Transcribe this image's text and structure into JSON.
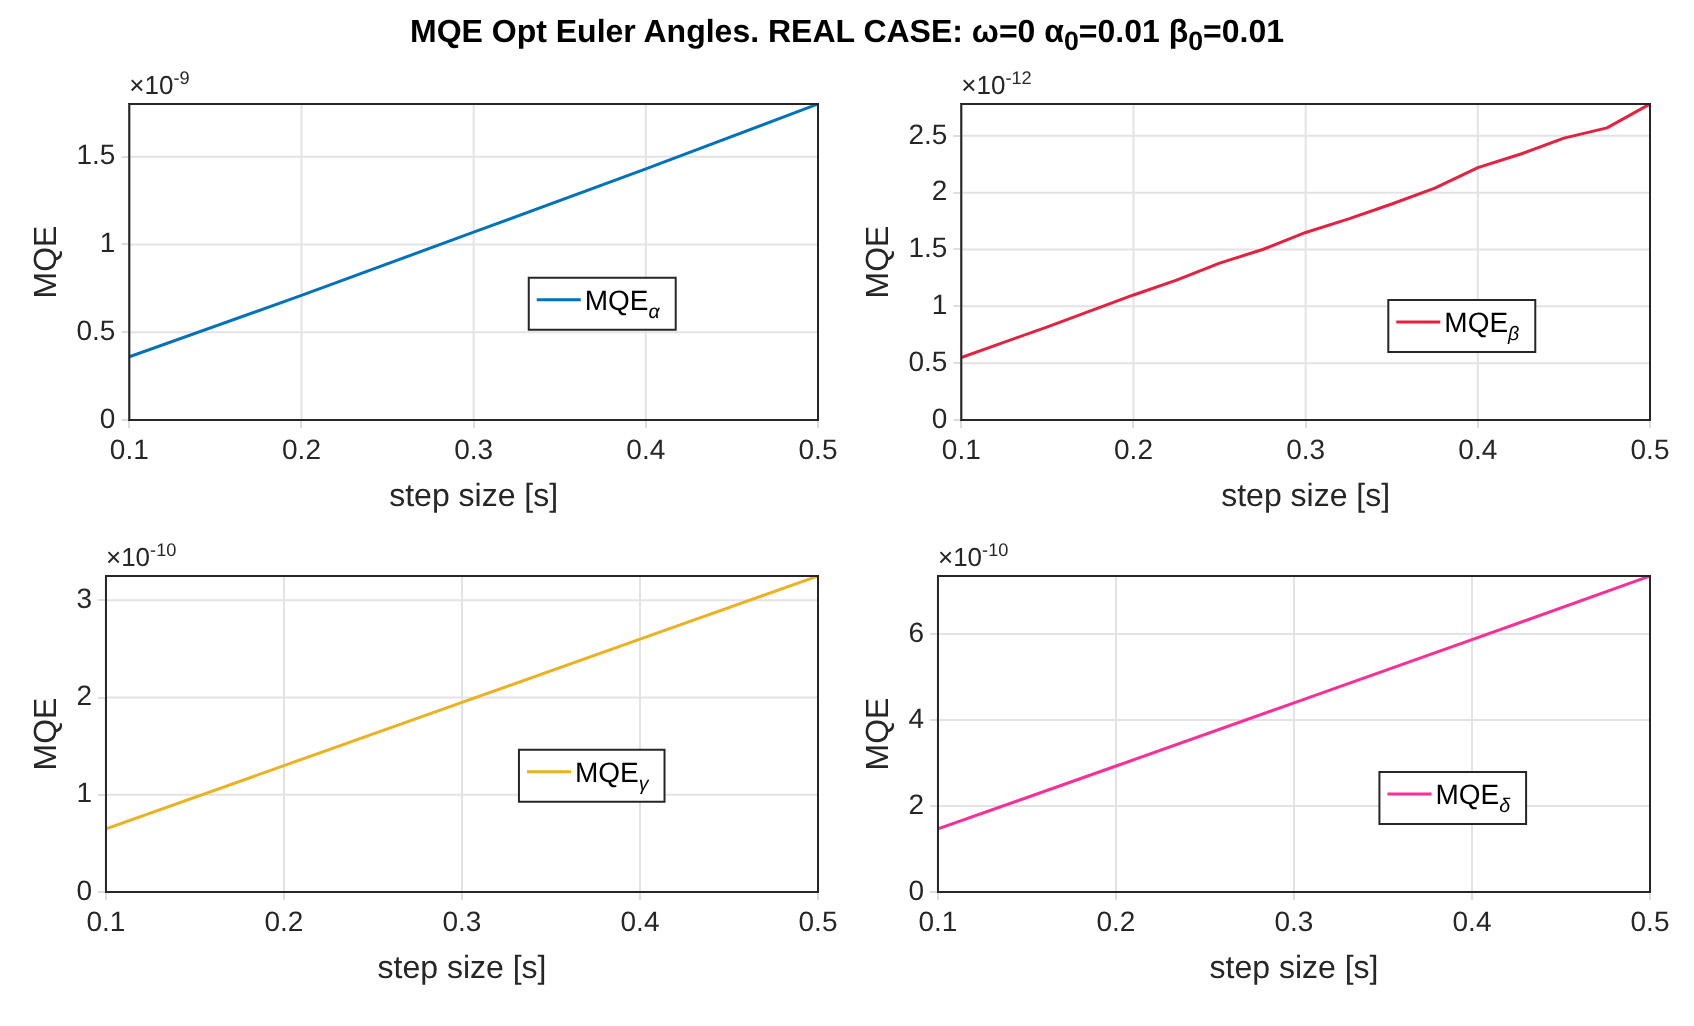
{
  "chart_data": [
    {
      "type": "line",
      "title": "MQE Opt Euler Angles. REAL CASE: ω=0 α$_{0}$=0.01 β$_{0}$=0.01",
      "xlabel": "step size [s]",
      "ylabel": "MQE",
      "annotations": [
        "×10$^{-9}$"
      ],
      "grid": true,
      "legend": "right",
      "xlim": [
        0.1,
        0.5
      ],
      "xticks": [
        0.1,
        0.2,
        0.3,
        0.4,
        0.5
      ],
      "ylim": [
        0,
        1.8
      ],
      "yticks": [
        0,
        0.5,
        1,
        1.5
      ],
      "series": [
        {
          "name": "MQE$_{α}$",
          "color": "#0072bd",
          "x": [
            0.1,
            0.2,
            0.3,
            0.4,
            0.5
          ],
          "values": [
            0.36,
            0.71,
            1.07,
            1.43,
            1.8
          ]
        }
      ]
    },
    {
      "type": "line",
      "xlabel": "step size [s]",
      "ylabel": "MQE",
      "annotations": [
        "×10$^{-12}$"
      ],
      "grid": true,
      "legend": "bottom right",
      "xlim": [
        0.1,
        0.5
      ],
      "xticks": [
        0.1,
        0.2,
        0.3,
        0.4,
        0.5
      ],
      "ylim": [
        0,
        2.78
      ],
      "yticks": [
        0,
        0.5,
        1,
        1.5,
        2,
        2.5
      ],
      "series": [
        {
          "name": "MQE$_{β}$",
          "color": "#e8203f",
          "x": [
            0.1,
            0.15,
            0.2,
            0.225,
            0.25,
            0.275,
            0.3,
            0.325,
            0.35,
            0.375,
            0.4,
            0.425,
            0.45,
            0.475,
            0.5
          ],
          "values": [
            0.55,
            0.82,
            1.1,
            1.23,
            1.38,
            1.5,
            1.65,
            1.77,
            1.9,
            2.04,
            2.22,
            2.34,
            2.48,
            2.57,
            2.78
          ]
        }
      ]
    },
    {
      "type": "line",
      "xlabel": "step size [s]",
      "ylabel": "MQE",
      "annotations": [
        "×10$^{-10}$"
      ],
      "grid": true,
      "legend": "right",
      "xlim": [
        0.1,
        0.5
      ],
      "xticks": [
        0.1,
        0.2,
        0.3,
        0.4,
        0.5
      ],
      "ylim": [
        0,
        3.25
      ],
      "yticks": [
        0,
        1,
        2,
        3
      ],
      "series": [
        {
          "name": "MQE$_{γ}$",
          "color": "#edb120",
          "x": [
            0.1,
            0.2,
            0.3,
            0.4,
            0.5
          ],
          "values": [
            0.65,
            1.3,
            1.95,
            2.6,
            3.25
          ]
        }
      ]
    },
    {
      "type": "line",
      "xlabel": "step size [s]",
      "ylabel": "MQE",
      "annotations": [
        "×10$^{-10}$"
      ],
      "grid": true,
      "legend": "bottom right",
      "xlim": [
        0.1,
        0.5
      ],
      "xticks": [
        0.1,
        0.2,
        0.3,
        0.4,
        0.5
      ],
      "ylim": [
        0,
        7.35
      ],
      "yticks": [
        0,
        2,
        4,
        6
      ],
      "series": [
        {
          "name": "MQE$_{δ}$",
          "color": "#ff2d96",
          "x": [
            0.1,
            0.2,
            0.3,
            0.4,
            0.5
          ],
          "values": [
            1.47,
            2.93,
            4.4,
            5.87,
            7.35
          ]
        }
      ]
    }
  ]
}
